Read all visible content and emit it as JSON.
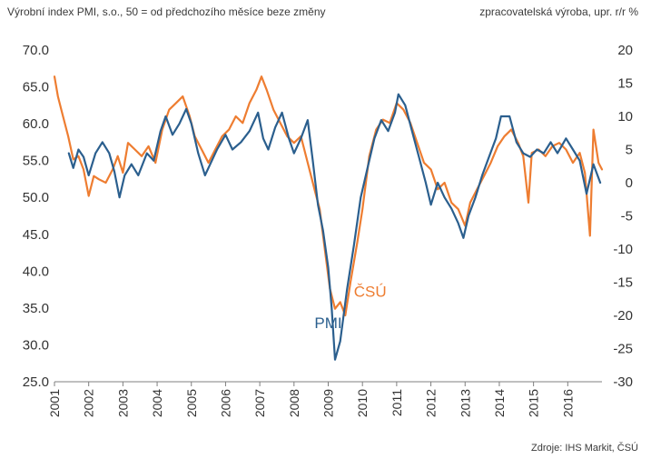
{
  "header": {
    "left_title": "Výrobní index PMI, s.o., 50 = od předchozího měsíce beze změny",
    "right_title": "zpracovatelská výroba, upr. r/r %"
  },
  "source": "Zdroje: IHS Markit, ČSÚ",
  "chart_data": {
    "type": "line",
    "title": "",
    "x_ticks": [
      "2001",
      "2002",
      "2003",
      "2004",
      "2005",
      "2006",
      "2007",
      "2008",
      "2009",
      "2010",
      "2011",
      "2012",
      "2013",
      "2014",
      "2015",
      "2016"
    ],
    "y_left": {
      "label": "Výrobní index PMI, s.o., 50 = od předchozího měsíce beze změny",
      "ylim": [
        25,
        70
      ],
      "ticks": [
        "25.0",
        "30.0",
        "35.0",
        "40.0",
        "45.0",
        "50.0",
        "55.0",
        "60.0",
        "65.0",
        "70.0"
      ]
    },
    "y_right": {
      "label": "zpracovatelská výroba, upr. r/r %",
      "ylim": [
        -30,
        20
      ],
      "ticks": [
        "-30",
        "-25",
        "-20",
        "-15",
        "-10",
        "-5",
        "0",
        "5",
        "10",
        "15",
        "20"
      ]
    },
    "grid": false,
    "series": [
      {
        "name": "PMI",
        "axis": "left",
        "color": "#2b5f8e",
        "points": [
          [
            2001.42,
            56.0
          ],
          [
            2001.55,
            54.0
          ],
          [
            2001.7,
            56.5
          ],
          [
            2001.85,
            55.5
          ],
          [
            2002.0,
            53.0
          ],
          [
            2002.2,
            56.0
          ],
          [
            2002.4,
            57.5
          ],
          [
            2002.6,
            56.0
          ],
          [
            2002.75,
            53.5
          ],
          [
            2002.9,
            50.0
          ],
          [
            2003.05,
            53.0
          ],
          [
            2003.25,
            54.5
          ],
          [
            2003.45,
            53.0
          ],
          [
            2003.7,
            56.0
          ],
          [
            2003.9,
            55.0
          ],
          [
            2004.1,
            59.0
          ],
          [
            2004.25,
            61.0
          ],
          [
            2004.45,
            58.5
          ],
          [
            2004.65,
            60.0
          ],
          [
            2004.85,
            62.0
          ],
          [
            2005.0,
            60.0
          ],
          [
            2005.2,
            56.0
          ],
          [
            2005.4,
            53.0
          ],
          [
            2005.55,
            54.5
          ],
          [
            2005.75,
            56.5
          ],
          [
            2006.0,
            58.5
          ],
          [
            2006.2,
            56.5
          ],
          [
            2006.45,
            57.5
          ],
          [
            2006.7,
            59.0
          ],
          [
            2006.95,
            61.5
          ],
          [
            2007.1,
            58.0
          ],
          [
            2007.25,
            56.5
          ],
          [
            2007.45,
            59.5
          ],
          [
            2007.65,
            61.5
          ],
          [
            2007.85,
            58.0
          ],
          [
            2008.0,
            56.0
          ],
          [
            2008.2,
            58.0
          ],
          [
            2008.4,
            60.5
          ],
          [
            2008.55,
            55.0
          ],
          [
            2008.7,
            49.0
          ],
          [
            2008.85,
            45.5
          ],
          [
            2009.0,
            40.5
          ],
          [
            2009.1,
            35.0
          ],
          [
            2009.2,
            28.0
          ],
          [
            2009.35,
            30.5
          ],
          [
            2009.55,
            37.5
          ],
          [
            2009.75,
            43.5
          ],
          [
            2009.95,
            50.0
          ],
          [
            2010.15,
            54.0
          ],
          [
            2010.35,
            58.0
          ],
          [
            2010.55,
            60.5
          ],
          [
            2010.75,
            59.0
          ],
          [
            2010.95,
            61.5
          ],
          [
            2011.05,
            64.0
          ],
          [
            2011.25,
            62.5
          ],
          [
            2011.45,
            59.0
          ],
          [
            2011.65,
            55.5
          ],
          [
            2011.85,
            52.0
          ],
          [
            2012.0,
            49.0
          ],
          [
            2012.2,
            52.0
          ],
          [
            2012.4,
            50.0
          ],
          [
            2012.6,
            48.5
          ],
          [
            2012.8,
            46.5
          ],
          [
            2012.95,
            44.5
          ],
          [
            2013.1,
            47.5
          ],
          [
            2013.3,
            50.0
          ],
          [
            2013.5,
            53.0
          ],
          [
            2013.7,
            55.5
          ],
          [
            2013.9,
            58.0
          ],
          [
            2014.05,
            61.0
          ],
          [
            2014.3,
            61.0
          ],
          [
            2014.5,
            57.5
          ],
          [
            2014.7,
            56.0
          ],
          [
            2014.9,
            55.5
          ],
          [
            2015.1,
            56.5
          ],
          [
            2015.3,
            56.0
          ],
          [
            2015.5,
            57.5
          ],
          [
            2015.7,
            56.0
          ],
          [
            2015.95,
            58.0
          ],
          [
            2016.15,
            56.5
          ],
          [
            2016.35,
            55.0
          ],
          [
            2016.55,
            50.5
          ],
          [
            2016.75,
            54.5
          ],
          [
            2016.95,
            52.0
          ]
        ]
      },
      {
        "name": "ČSÚ",
        "axis": "right",
        "color": "#ee7d31",
        "points": [
          [
            2001.0,
            16.0
          ],
          [
            2001.1,
            13.0
          ],
          [
            2001.25,
            10.0
          ],
          [
            2001.4,
            7.0
          ],
          [
            2001.55,
            3.5
          ],
          [
            2001.7,
            4.0
          ],
          [
            2001.85,
            2.0
          ],
          [
            2002.0,
            -2.0
          ],
          [
            2002.15,
            1.0
          ],
          [
            2002.3,
            0.5
          ],
          [
            2002.5,
            0.0
          ],
          [
            2002.7,
            2.0
          ],
          [
            2002.85,
            4.0
          ],
          [
            2003.0,
            1.5
          ],
          [
            2003.15,
            6.0
          ],
          [
            2003.35,
            5.0
          ],
          [
            2003.55,
            4.0
          ],
          [
            2003.75,
            5.5
          ],
          [
            2003.95,
            3.0
          ],
          [
            2004.15,
            8.0
          ],
          [
            2004.35,
            11.0
          ],
          [
            2004.55,
            12.0
          ],
          [
            2004.75,
            13.0
          ],
          [
            2004.95,
            10.0
          ],
          [
            2005.1,
            7.0
          ],
          [
            2005.3,
            5.0
          ],
          [
            2005.5,
            3.0
          ],
          [
            2005.7,
            5.0
          ],
          [
            2005.9,
            7.0
          ],
          [
            2006.1,
            8.0
          ],
          [
            2006.3,
            10.0
          ],
          [
            2006.5,
            9.0
          ],
          [
            2006.7,
            12.0
          ],
          [
            2006.9,
            14.0
          ],
          [
            2007.05,
            16.0
          ],
          [
            2007.2,
            14.0
          ],
          [
            2007.4,
            11.0
          ],
          [
            2007.6,
            9.0
          ],
          [
            2007.8,
            7.0
          ],
          [
            2008.0,
            6.0
          ],
          [
            2008.2,
            7.0
          ],
          [
            2008.4,
            3.0
          ],
          [
            2008.6,
            -1.0
          ],
          [
            2008.75,
            -4.0
          ],
          [
            2008.9,
            -10.0
          ],
          [
            2009.05,
            -16.0
          ],
          [
            2009.2,
            -19.0
          ],
          [
            2009.35,
            -18.0
          ],
          [
            2009.5,
            -20.0
          ],
          [
            2009.65,
            -15.0
          ],
          [
            2009.85,
            -9.0
          ],
          [
            2010.0,
            -4.0
          ],
          [
            2010.2,
            4.0
          ],
          [
            2010.4,
            8.0
          ],
          [
            2010.6,
            9.5
          ],
          [
            2010.8,
            9.0
          ],
          [
            2011.0,
            12.0
          ],
          [
            2011.2,
            11.0
          ],
          [
            2011.4,
            9.0
          ],
          [
            2011.6,
            6.0
          ],
          [
            2011.8,
            3.0
          ],
          [
            2012.0,
            2.0
          ],
          [
            2012.2,
            -1.0
          ],
          [
            2012.4,
            0.0
          ],
          [
            2012.6,
            -3.0
          ],
          [
            2012.8,
            -4.0
          ],
          [
            2013.0,
            -6.5
          ],
          [
            2013.15,
            -3.0
          ],
          [
            2013.35,
            -1.0
          ],
          [
            2013.55,
            1.0
          ],
          [
            2013.75,
            3.0
          ],
          [
            2013.95,
            5.5
          ],
          [
            2014.15,
            7.0
          ],
          [
            2014.35,
            8.0
          ],
          [
            2014.55,
            6.0
          ],
          [
            2014.7,
            4.0
          ],
          [
            2014.85,
            -3.0
          ],
          [
            2014.95,
            4.5
          ],
          [
            2015.15,
            5.0
          ],
          [
            2015.35,
            4.0
          ],
          [
            2015.55,
            5.5
          ],
          [
            2015.75,
            6.0
          ],
          [
            2015.95,
            5.0
          ],
          [
            2016.15,
            3.0
          ],
          [
            2016.35,
            4.5
          ],
          [
            2016.5,
            1.5
          ],
          [
            2016.65,
            -8.0
          ],
          [
            2016.75,
            8.0
          ],
          [
            2016.9,
            3.0
          ],
          [
            2017.0,
            2.0
          ]
        ]
      }
    ],
    "annotations": [
      {
        "text": "PMI",
        "series": "PMI",
        "x": 2008.6,
        "y_left": 32.3
      },
      {
        "text": "ČSÚ",
        "series": "ČSÚ",
        "x": 2009.75,
        "y_left": 36.5
      }
    ]
  }
}
